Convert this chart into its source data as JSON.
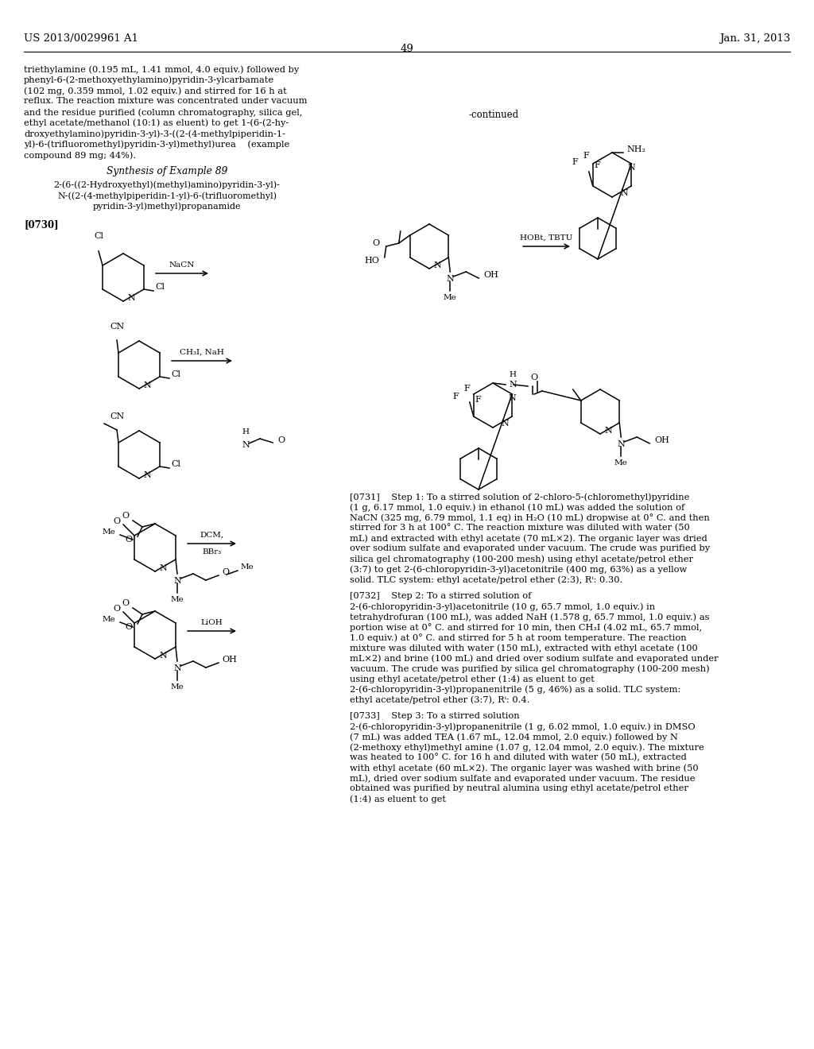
{
  "header_left": "US 2013/0029961 A1",
  "header_right": "Jan. 31, 2013",
  "page_number": "49",
  "left_body_lines": [
    "triethylamine (0.195 mL, 1.41 mmol, 4.0 equiv.) followed by",
    "phenyl-6-(2-methoxyethylamino)pyridin-3-ylcarbamate",
    "(102 mg, 0.359 mmol, 1.02 equiv.) and stirred for 16 h at",
    "reflux. The reaction mixture was concentrated under vacuum",
    "and the residue purified (column chromatography, silica gel,",
    "ethyl acetate/methanol (10:1) as eluent) to get 1-(6-(2-hy-",
    "droxyethylamino)pyridin-3-yl)-3-((2-(4-methylpiperidin-1-",
    "yl)-6-(trifluoromethyl)pyridin-3-yl)methyl)urea    (example",
    "compound 89 mg; 44%)."
  ],
  "synthesis_title": "Synthesis of Example 89",
  "compound_name": [
    "2-(6-((2-Hydroxyethyl)(methyl)amino)pyridin-3-yl)-",
    "N-((2-(4-methylpiperidin-1-yl)-6-(trifluoromethyl)",
    "pyridin-3-yl)methyl)propanamide"
  ],
  "para0730": "[0730]",
  "continued_label": "-continued",
  "right_paragraphs": [
    {
      "label": "[0731]",
      "body": "Step 1: To a stirred solution of 2-chloro-5-(chloromethyl)pyridine (1 g, 6.17 mmol, 1.0 equiv.) in ethanol (10 mL) was added the solution of NaCN (325 mg, 6.79 mmol, 1.1 eq) in H₂O (10 mL) dropwise at 0° C. and then stirred for 3 h at 100° C. The reaction mixture was diluted with water (50 mL) and extracted with ethyl acetate (70 mL×2). The organic layer was dried over sodium sulfate and evaporated under vacuum. The crude was purified by silica gel chromatography (100-200 mesh) using ethyl acetate/petrol ether (3:7) to get 2-(6-chloropyridin-3-yl)acetonitrile (400 mg, 63%) as a yellow solid. TLC system: ethyl acetate/petrol ether (2:3), Rⁱ: 0.30."
    },
    {
      "label": "[0732]",
      "body": "Step 2: To a stirred solution of 2-(6-chloropyridin-3-yl)acetonitrile (10 g, 65.7 mmol, 1.0 equiv.) in tetrahydrofuran (100 mL), was added NaH (1.578 g, 65.7 mmol, 1.0 equiv.) as portion wise at 0° C. and stirred for 10 min, then CH₃I (4.02 mL, 65.7 mmol, 1.0 equiv.) at 0° C. and stirred for 5 h at room temperature. The reaction mixture was diluted with water (150 mL), extracted with ethyl acetate (100 mL×2) and brine (100 mL) and dried over sodium sulfate and evaporated under vacuum. The crude was purified by silica gel chromatography (100-200 mesh) using ethyl acetate/petrol ether (1:4) as eluent to get 2-(6-chloropyridin-3-yl)propanenitrile (5 g, 46%) as a solid. TLC system: ethyl acetate/petrol ether (3:7), Rⁱ: 0.4."
    },
    {
      "label": "[0733]",
      "body": "Step 3: To a stirred solution 2-(6-chloropyridin-3-yl)propanenitrile (1 g, 6.02 mmol, 1.0 equiv.) in DMSO (7 mL) was added TEA (1.67 mL, 12.04 mmol, 2.0 equiv.) followed by N (2-methoxy ethyl)methyl amine (1.07 g, 12.04 mmol, 2.0 equiv.). The mixture was heated to 100° C. for 16 h and diluted with water (50 mL), extracted with ethyl acetate (60 mL×2). The organic layer was washed with brine (50 mL), dried over sodium sulfate and evaporated under vacuum. The residue obtained was purified by neutral alumina using ethyl acetate/petrol ether (1:4) as eluent to get"
    }
  ],
  "bg_color": "#ffffff",
  "text_color": "#000000"
}
